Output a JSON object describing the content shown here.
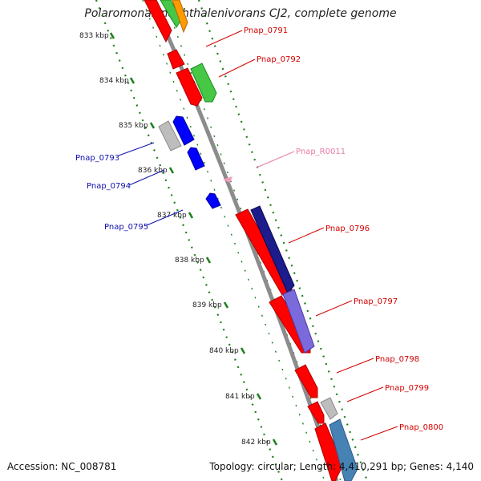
{
  "title": "Polaromonas naphthalenivorans CJ2, complete genome",
  "accession": "Accession: NC_008781",
  "summary": "Topology: circular; Length: 4,410,291 bp; Genes: 4,140",
  "colors": {
    "backbone": "#8c8c8c",
    "tick": "#1a7f1a",
    "forward_label": "#d40000",
    "reverse_label": "#1010b0",
    "rna_label": "#e87aa8"
  },
  "scale_labels": [
    "833 kbp",
    "834 kbp",
    "835 kbp",
    "836 kbp",
    "837 kbp",
    "838 kbp",
    "839 kbp",
    "840 kbp",
    "841 kbp",
    "842 kbp"
  ],
  "gene_labels": [
    {
      "text": "Pnap_0791",
      "strand": "forward"
    },
    {
      "text": "Pnap_0792",
      "strand": "forward"
    },
    {
      "text": "Pnap_0793",
      "strand": "reverse"
    },
    {
      "text": "Pnap_0794",
      "strand": "reverse"
    },
    {
      "text": "Pnap_R0011",
      "strand": "rna"
    },
    {
      "text": "Pnap_0795",
      "strand": "reverse"
    },
    {
      "text": "Pnap_0796",
      "strand": "forward"
    },
    {
      "text": "Pnap_0797",
      "strand": "forward"
    },
    {
      "text": "Pnap_0798",
      "strand": "forward"
    },
    {
      "text": "Pnap_0799",
      "strand": "forward"
    },
    {
      "text": "Pnap_0800",
      "strand": "forward"
    }
  ]
}
